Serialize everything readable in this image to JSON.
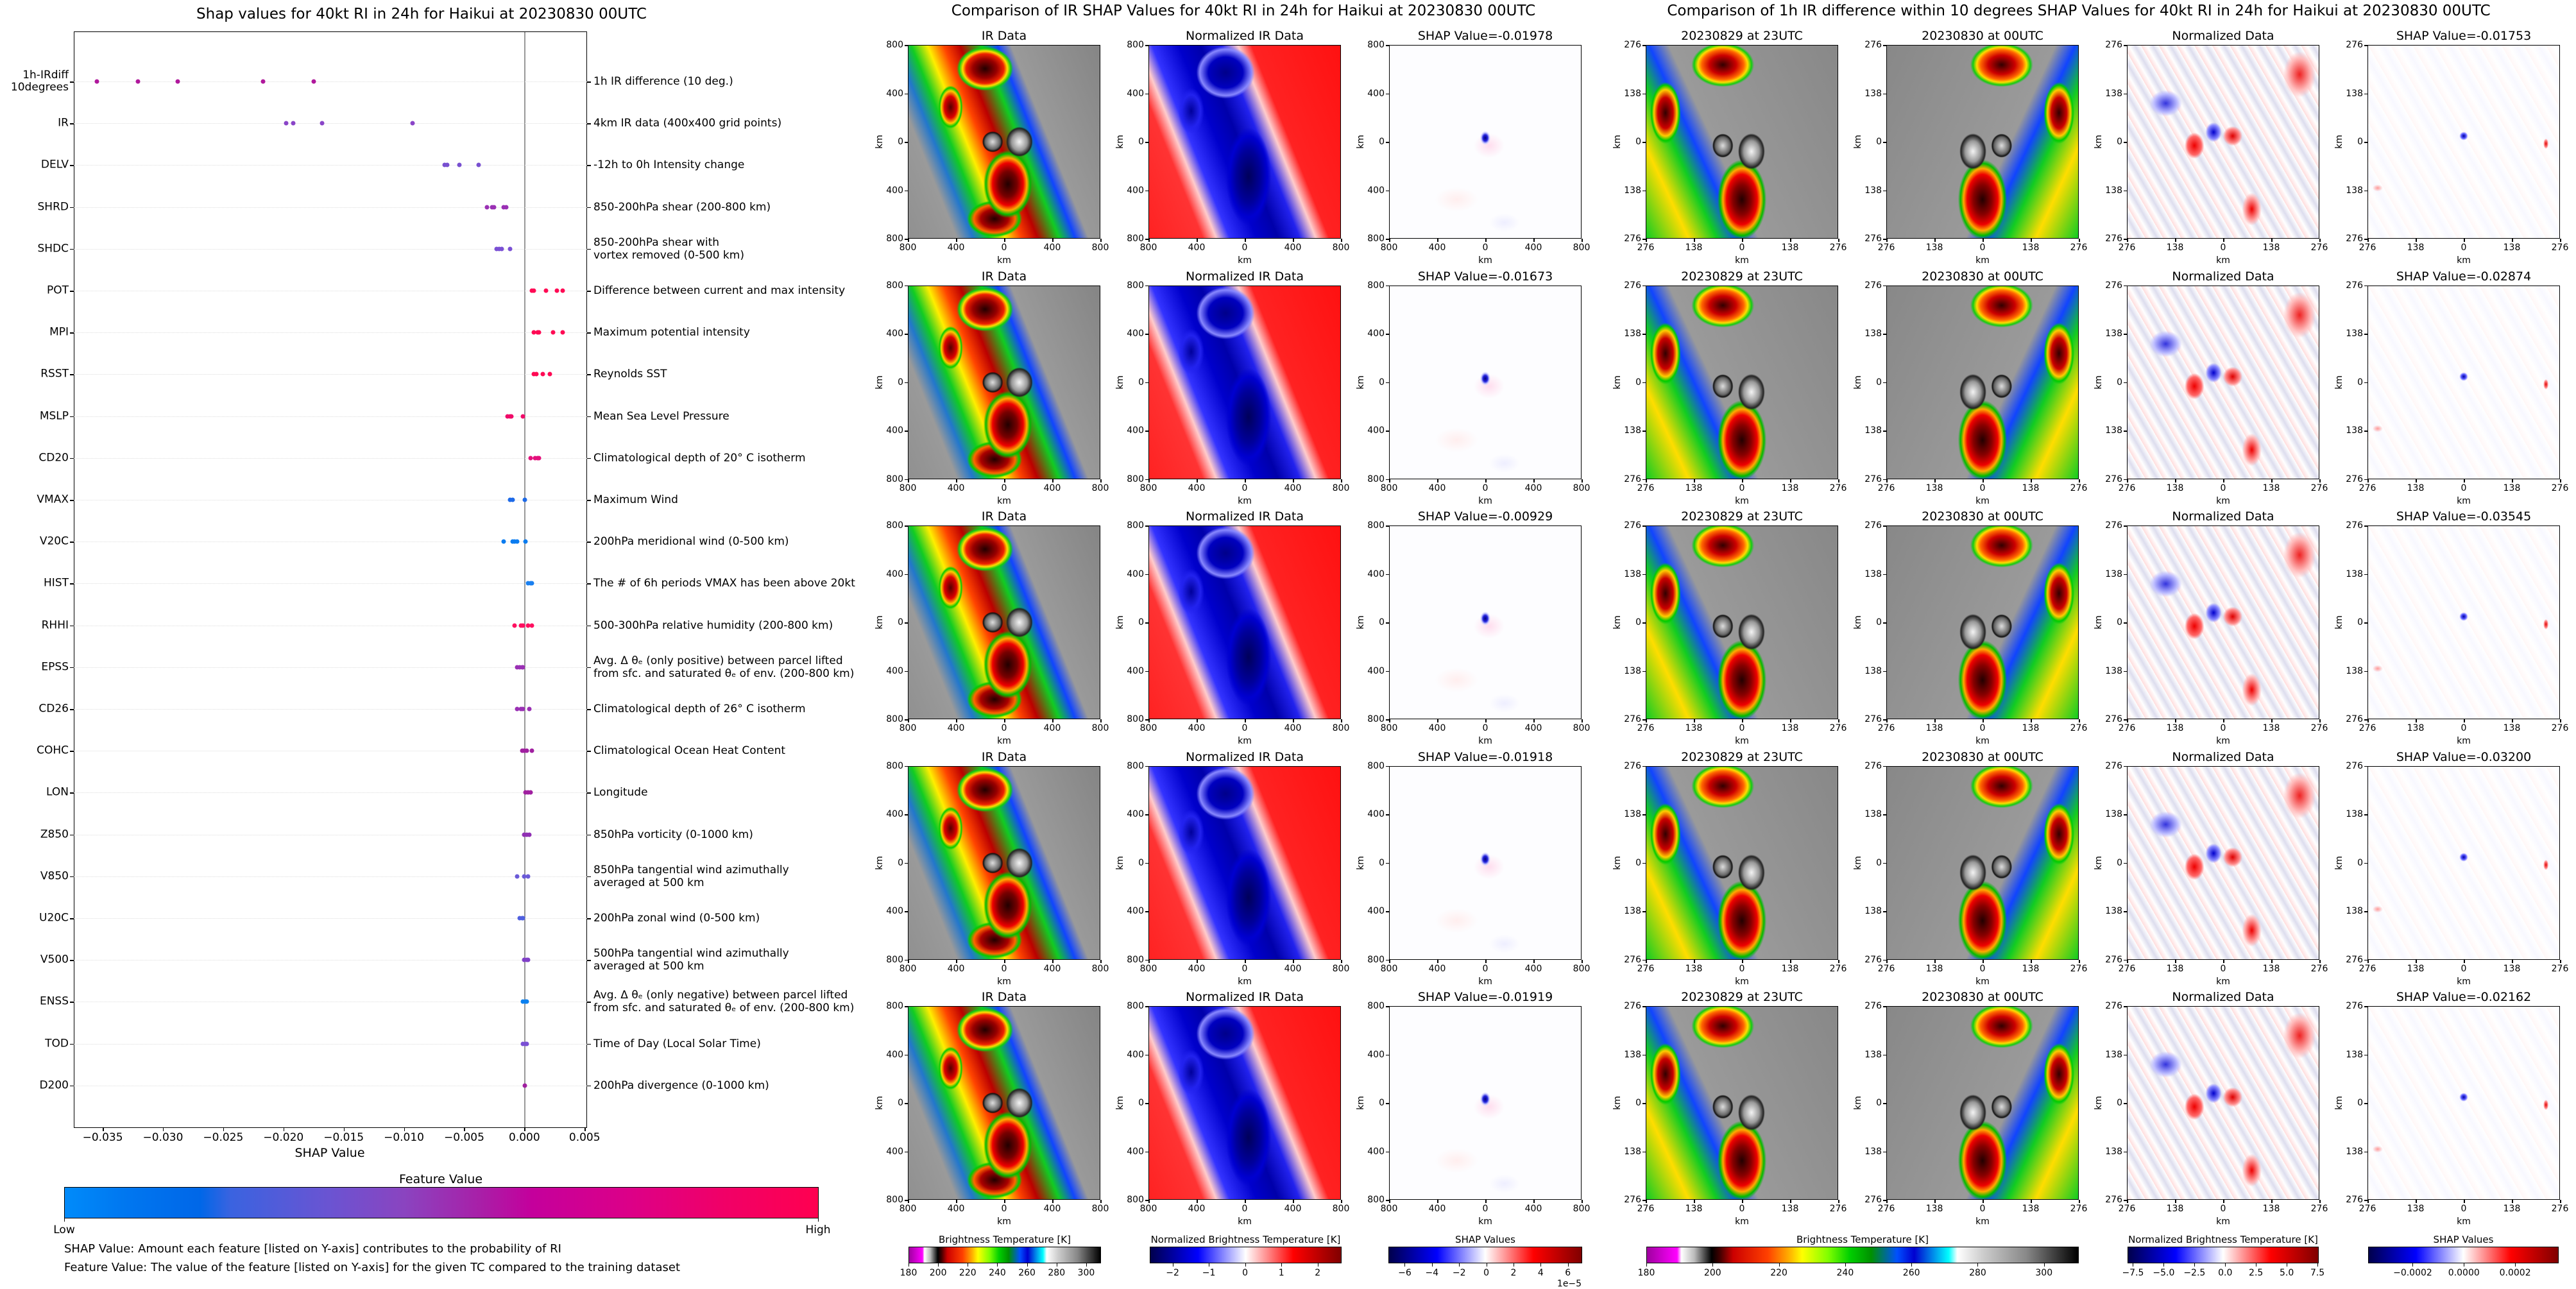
{
  "shap_plot": {
    "title": "Shap values for 40kt RI in 24h for Haikui at 20230830 00UTC",
    "colorbar_title": "Feature Value",
    "colorbar_low": "Low",
    "colorbar_high": "High",
    "notes": [
      "SHAP Value: Amount each feature [listed on Y-axis] contributes to the probability of RI",
      "Feature Value: The value of the feature [listed on Y-axis] for the given TC compared to the training dataset"
    ]
  },
  "chart_data": {
    "type": "scatter",
    "title": "Shap values for 40kt RI in 24h for Haikui at 20230830 00UTC",
    "xlabel": "SHAP Value",
    "ylabel": "",
    "xlim": [
      -0.0374,
      0.0052
    ],
    "reference_line_x": 0,
    "grid": "horizontal dotted",
    "xticks": [
      -0.035,
      -0.03,
      -0.025,
      -0.02,
      -0.015,
      -0.01,
      -0.005,
      0.0,
      0.005
    ],
    "xtick_labels": [
      "−0.035",
      "−0.030",
      "−0.025",
      "−0.020",
      "−0.015",
      "−0.010",
      "−0.005",
      "0.000",
      "0.005"
    ],
    "color_scale": {
      "low": "#008bfa",
      "mid": "#8a44c0",
      "high": "#ff0050"
    },
    "features": [
      {
        "code": "1h-IRdiff\n10degrees",
        "description": "1h IR difference (10 deg.)",
        "color": "#b0189c",
        "values": [
          -0.0355,
          -0.0321,
          -0.0288,
          -0.0217,
          -0.0175
        ]
      },
      {
        "code": "IR",
        "description": "4km IR data (400x400 grid points)",
        "color": "#8a45c8",
        "values": [
          -0.0198,
          -0.0192,
          -0.0168,
          -0.0093
        ]
      },
      {
        "code": "DELV",
        "description": "-12h to 0h Intensity change",
        "color": "#7850d0",
        "values": [
          -0.0066,
          -0.0064,
          -0.0054,
          -0.0038
        ]
      },
      {
        "code": "SHRD",
        "description": "850-200hPa shear (200-800 km)",
        "color": "#9a30b4",
        "values": [
          -0.0031,
          -0.0027,
          -0.0025,
          -0.0017,
          -0.0015
        ]
      },
      {
        "code": "SHDC",
        "description": "850-200hPa shear with\nvortex removed (0-500 km)",
        "color": "#7a50d4",
        "values": [
          -0.0023,
          -0.0021,
          -0.0019,
          -0.0012
        ]
      },
      {
        "code": "POT",
        "description": "Difference between current and max intensity",
        "color": "#ff0a54",
        "values": [
          0.0006,
          0.0008,
          0.0018,
          0.0027,
          0.0032
        ]
      },
      {
        "code": "MPI",
        "description": "Maximum potential intensity",
        "color": "#ff0a54",
        "values": [
          0.0008,
          0.0011,
          0.0012,
          0.0024,
          0.0032
        ]
      },
      {
        "code": "RSST",
        "description": "Reynolds SST",
        "color": "#ff0a54",
        "values": [
          0.0008,
          0.001,
          0.0015,
          0.0021
        ]
      },
      {
        "code": "MSLP",
        "description": "Mean Sea Level Pressure",
        "color": "#f00a68",
        "values": [
          -0.0014,
          -0.0012,
          -0.0011,
          -0.0001
        ]
      },
      {
        "code": "CD20",
        "description": "Climatological depth of 20° C isotherm",
        "color": "#e4107c",
        "values": [
          0.0005,
          0.0009,
          0.0011,
          0.0012
        ]
      },
      {
        "code": "VMAX",
        "description": "Maximum Wind",
        "color": "#1e6ae8",
        "values": [
          -0.0012,
          -0.001,
          5e-05
        ]
      },
      {
        "code": "V20C",
        "description": "200hPa meridional wind (0-500 km)",
        "color": "#0a7cf0",
        "values": [
          -0.0017,
          -0.001,
          -0.0008,
          -0.0006,
          0.0001
        ]
      },
      {
        "code": "HIST",
        "description": "The # of 6h periods VMAX has been above 20kt",
        "color": "#1a80f0",
        "values": [
          0.0003,
          0.0005,
          0.0006
        ]
      },
      {
        "code": "RHHI",
        "description": "500-300hPa relative humidity (200-800 km)",
        "color": "#ff1060",
        "values": [
          -0.0008,
          -0.0003,
          -0.0001,
          0.0003,
          0.0006
        ]
      },
      {
        "code": "EPSS",
        "description": "Avg. Δ θₑ (only positive) between parcel lifted\nfrom sfc. and saturated θₑ of env. (200-800 km)",
        "color": "#9a30b4",
        "values": [
          -0.0006,
          -0.0004,
          -0.0002,
          -0.0001
        ]
      },
      {
        "code": "CD26",
        "description": "Climatological depth of 26° C isotherm",
        "color": "#9a30b4",
        "values": [
          -0.0006,
          -0.0003,
          -0.0001,
          0.0004
        ]
      },
      {
        "code": "COHC",
        "description": "Climatological Ocean Heat Content",
        "color": "#a020a0",
        "values": [
          -0.0002,
          0.0,
          0.0002,
          0.0006
        ]
      },
      {
        "code": "LON",
        "description": "Longitude",
        "color": "#a020a0",
        "values": [
          0.0001,
          0.0003,
          0.0005
        ]
      },
      {
        "code": "Z850",
        "description": "850hPa vorticity (0-1000 km)",
        "color": "#9030b4",
        "values": [
          0.0,
          0.0002,
          0.0004
        ]
      },
      {
        "code": "V850",
        "description": "850hPa tangential wind azimuthally\naveraged at 500 km",
        "color": "#6a5ad8",
        "values": [
          -0.0006,
          0.0,
          0.0003
        ]
      },
      {
        "code": "U20C",
        "description": "200hPa zonal wind (0-500 km)",
        "color": "#5060e0",
        "values": [
          -0.0004,
          -0.0002,
          -0.0001
        ]
      },
      {
        "code": "V500",
        "description": "500hPa tangential wind azimuthally\naveraged at 500 km",
        "color": "#8040c8",
        "values": [
          0.0,
          0.0002,
          0.0003
        ]
      },
      {
        "code": "ENSS",
        "description": "Avg. Δ θₑ (only negative) between parcel lifted\nfrom sfc. and saturated θₑ of env. (200-800 km)",
        "color": "#0a80f0",
        "values": [
          -0.0001,
          0.0001,
          0.0002
        ]
      },
      {
        "code": "TOD",
        "description": "Time of Day (Local Solar Time)",
        "color": "#7a50d4",
        "values": [
          -0.0001,
          0.0001,
          0.0002
        ]
      },
      {
        "code": "D200",
        "description": "200hPa divergence (0-1000 km)",
        "color": "#a020a0",
        "values": [
          5e-05
        ]
      }
    ]
  },
  "ir_comparison": {
    "title": "Comparison of IR SHAP Values for 40kt RI in 24h for Haikui at 20230830 00UTC",
    "axis_label": "km",
    "axis_ticks": [
      "800",
      "400",
      "0",
      "400",
      "800"
    ],
    "rows": [
      {
        "titles": [
          "IR Data",
          "Normalized IR Data",
          "SHAP Value=-0.01978"
        ]
      },
      {
        "titles": [
          "IR Data",
          "Normalized IR Data",
          "SHAP Value=-0.01673"
        ]
      },
      {
        "titles": [
          "IR Data",
          "Normalized IR Data",
          "SHAP Value=-0.00929"
        ]
      },
      {
        "titles": [
          "IR Data",
          "Normalized IR Data",
          "SHAP Value=-0.01918"
        ]
      },
      {
        "titles": [
          "IR Data",
          "Normalized IR Data",
          "SHAP Value=-0.01919"
        ]
      }
    ],
    "colorbars": [
      {
        "label": "Brightness Temperature [K]",
        "range": [
          180,
          310
        ],
        "ticks": [
          180,
          200,
          220,
          240,
          260,
          280,
          300
        ],
        "tick_labels": [
          "180",
          "200",
          "220",
          "240",
          "260",
          "280",
          "300"
        ]
      },
      {
        "label": "Normalized Brightness Temperature [K]",
        "range": [
          -2.63,
          2.66
        ],
        "ticks": [
          -2,
          -1,
          0,
          1,
          2
        ],
        "tick_labels": [
          "−2",
          "−1",
          "0",
          "1",
          "2"
        ]
      },
      {
        "label": "SHAP Values",
        "range": [
          -7.2,
          7.05
        ],
        "ticks": [
          -6,
          -4,
          -2,
          0,
          2,
          4,
          6
        ],
        "tick_labels": [
          "−6",
          "−4",
          "−2",
          "0",
          "2",
          "4",
          "6"
        ],
        "offset": "1e−5"
      }
    ]
  },
  "irdiff_comparison": {
    "title": "Comparison of 1h IR difference within 10 degrees SHAP Values for 40kt RI in 24h for Haikui at 20230830 00UTC",
    "axis_label": "km",
    "axis_ticks": [
      "276",
      "138",
      "0",
      "138",
      "276"
    ],
    "rows": [
      {
        "titles": [
          "20230829 at 23UTC",
          "20230830 at 00UTC",
          "Normalized Data",
          "SHAP Value=-0.01753"
        ]
      },
      {
        "titles": [
          "20230829 at 23UTC",
          "20230830 at 00UTC",
          "Normalized Data",
          "SHAP Value=-0.02874"
        ]
      },
      {
        "titles": [
          "20230829 at 23UTC",
          "20230830 at 00UTC",
          "Normalized Data",
          "SHAP Value=-0.03545"
        ]
      },
      {
        "titles": [
          "20230829 at 23UTC",
          "20230830 at 00UTC",
          "Normalized Data",
          "SHAP Value=-0.03200"
        ]
      },
      {
        "titles": [
          "20230829 at 23UTC",
          "20230830 at 00UTC",
          "Normalized Data",
          "SHAP Value=-0.02162"
        ]
      }
    ],
    "colorbars": [
      {
        "label": "Brightness Temperature [K]",
        "range": [
          180,
          310.5
        ],
        "ticks": [
          180,
          200,
          220,
          240,
          260,
          280,
          300
        ],
        "tick_labels": [
          "180",
          "200",
          "220",
          "240",
          "260",
          "280",
          "300"
        ]
      },
      {
        "label": "Normalized Brightness Temperature [K]",
        "range": [
          -7.94,
          7.6
        ],
        "ticks": [
          -7.5,
          -5,
          -2.5,
          0,
          2.5,
          5,
          7.5
        ],
        "tick_labels": [
          "−7.5",
          "−5.0",
          "−2.5",
          "0.0",
          "2.5",
          "5.0",
          "7.5"
        ]
      },
      {
        "label": "SHAP Values",
        "range": [
          -0.000374,
          0.00037
        ],
        "ticks": [
          -0.0002,
          0,
          0.0002
        ],
        "tick_labels": [
          "−0.0002",
          "0.0000",
          "0.0002"
        ]
      }
    ]
  }
}
